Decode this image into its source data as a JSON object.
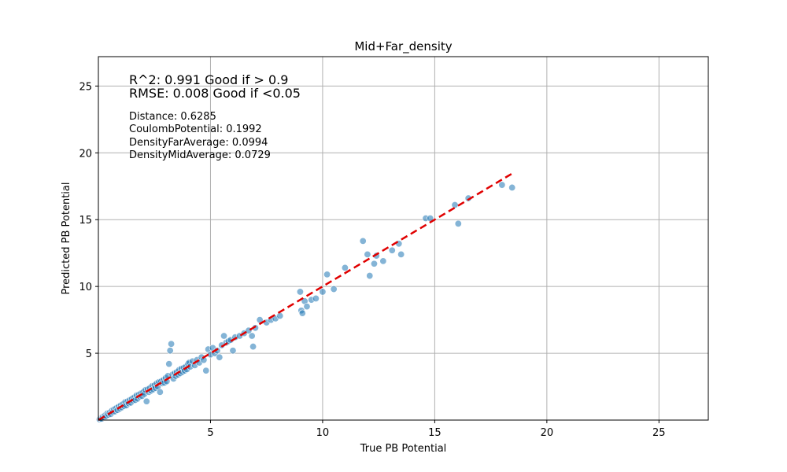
{
  "chart_data": {
    "type": "scatter",
    "title": "Mid+Far_density",
    "xlabel": "True PB Potential",
    "ylabel": "Predicted PB Potential",
    "xlim": [
      0,
      27.2
    ],
    "ylim": [
      0,
      27.2
    ],
    "xticks": [
      5,
      10,
      15,
      20,
      25
    ],
    "yticks": [
      5,
      10,
      15,
      20,
      25
    ],
    "grid": true,
    "colors": {
      "points": "#1f77b4",
      "points_edge": "#ffffff",
      "ideal_line": "#e00000",
      "grid": "#b0b0b0"
    },
    "ideal_line": {
      "style": "dashed",
      "x": [
        0,
        18.45
      ],
      "y": [
        0,
        18.45
      ]
    },
    "annotations": {
      "metrics": [
        "R^2: 0.991 Good if > 0.9",
        "RMSE: 0.008 Good if <0.05"
      ],
      "feature_importance": [
        "Distance: 0.6285",
        "CoulombPotential: 0.1992",
        "DensityFarAverage: 0.0994",
        "DensityMidAverage: 0.0729"
      ]
    },
    "series": [
      {
        "points": [
          [
            0.05,
            0.05
          ],
          [
            0.1,
            0.12
          ],
          [
            0.15,
            0.1
          ],
          [
            0.2,
            0.25
          ],
          [
            0.25,
            0.2
          ],
          [
            0.3,
            0.35
          ],
          [
            0.35,
            0.3
          ],
          [
            0.4,
            0.5
          ],
          [
            0.45,
            0.4
          ],
          [
            0.5,
            0.55
          ],
          [
            0.55,
            0.45
          ],
          [
            0.6,
            0.7
          ],
          [
            0.65,
            0.6
          ],
          [
            0.7,
            0.8
          ],
          [
            0.75,
            0.65
          ],
          [
            0.8,
            0.9
          ],
          [
            0.85,
            0.75
          ],
          [
            0.9,
            1.0
          ],
          [
            0.95,
            0.85
          ],
          [
            1.0,
            1.1
          ],
          [
            1.05,
            0.95
          ],
          [
            1.1,
            1.2
          ],
          [
            1.15,
            1.05
          ],
          [
            1.2,
            1.35
          ],
          [
            1.25,
            1.1
          ],
          [
            1.3,
            1.4
          ],
          [
            1.35,
            1.25
          ],
          [
            1.4,
            1.5
          ],
          [
            1.45,
            1.3
          ],
          [
            1.5,
            1.6
          ],
          [
            1.55,
            1.45
          ],
          [
            1.6,
            1.7
          ],
          [
            1.65,
            1.5
          ],
          [
            1.7,
            1.85
          ],
          [
            1.75,
            1.6
          ],
          [
            1.8,
            1.9
          ],
          [
            1.85,
            1.75
          ],
          [
            1.9,
            2.0
          ],
          [
            1.95,
            1.8
          ],
          [
            2.0,
            2.1
          ],
          [
            2.05,
            1.95
          ],
          [
            2.1,
            2.25
          ],
          [
            2.15,
            1.4
          ],
          [
            2.2,
            2.3
          ],
          [
            2.25,
            2.1
          ],
          [
            2.3,
            2.4
          ],
          [
            2.35,
            2.2
          ],
          [
            2.4,
            2.55
          ],
          [
            2.45,
            2.3
          ],
          [
            2.5,
            2.6
          ],
          [
            2.55,
            2.4
          ],
          [
            2.6,
            2.75
          ],
          [
            2.65,
            2.5
          ],
          [
            2.7,
            2.85
          ],
          [
            2.75,
            2.1
          ],
          [
            2.8,
            2.9
          ],
          [
            2.85,
            2.75
          ],
          [
            2.9,
            3.0
          ],
          [
            2.95,
            2.8
          ],
          [
            3.0,
            3.15
          ],
          [
            3.05,
            2.9
          ],
          [
            3.1,
            3.3
          ],
          [
            3.15,
            4.2
          ],
          [
            3.2,
            5.2
          ],
          [
            3.25,
            5.7
          ],
          [
            3.3,
            3.4
          ],
          [
            3.35,
            3.1
          ],
          [
            3.4,
            3.5
          ],
          [
            3.45,
            3.3
          ],
          [
            3.5,
            3.6
          ],
          [
            3.55,
            3.4
          ],
          [
            3.6,
            3.75
          ],
          [
            3.65,
            3.5
          ],
          [
            3.7,
            3.85
          ],
          [
            3.75,
            3.6
          ],
          [
            3.8,
            3.9
          ],
          [
            3.85,
            3.7
          ],
          [
            3.9,
            4.0
          ],
          [
            3.95,
            3.8
          ],
          [
            4.0,
            4.2
          ],
          [
            4.05,
            4.3
          ],
          [
            4.1,
            4.0
          ],
          [
            4.2,
            4.4
          ],
          [
            4.3,
            4.1
          ],
          [
            4.4,
            4.5
          ],
          [
            4.5,
            4.3
          ],
          [
            4.6,
            4.7
          ],
          [
            4.7,
            4.5
          ],
          [
            4.8,
            3.7
          ],
          [
            4.9,
            5.3
          ],
          [
            5.0,
            4.9
          ],
          [
            5.1,
            5.4
          ],
          [
            5.2,
            5.0
          ],
          [
            5.3,
            5.2
          ],
          [
            5.4,
            4.7
          ],
          [
            5.5,
            5.6
          ],
          [
            5.6,
            6.3
          ],
          [
            5.7,
            5.8
          ],
          [
            5.8,
            5.9
          ],
          [
            5.9,
            6.0
          ],
          [
            6.0,
            5.2
          ],
          [
            6.1,
            6.2
          ],
          [
            6.3,
            6.3
          ],
          [
            6.5,
            6.5
          ],
          [
            6.7,
            6.7
          ],
          [
            6.85,
            6.3
          ],
          [
            6.9,
            5.5
          ],
          [
            7.0,
            6.9
          ],
          [
            7.2,
            7.5
          ],
          [
            7.5,
            7.3
          ],
          [
            7.7,
            7.5
          ],
          [
            7.9,
            7.6
          ],
          [
            8.1,
            7.8
          ],
          [
            9.0,
            9.6
          ],
          [
            9.05,
            8.2
          ],
          [
            9.1,
            8.0
          ],
          [
            9.2,
            8.9
          ],
          [
            9.3,
            8.5
          ],
          [
            9.5,
            9.0
          ],
          [
            9.7,
            9.1
          ],
          [
            10.0,
            9.6
          ],
          [
            10.2,
            10.9
          ],
          [
            10.5,
            9.8
          ],
          [
            11.0,
            11.4
          ],
          [
            11.8,
            13.4
          ],
          [
            12.0,
            12.4
          ],
          [
            12.1,
            10.8
          ],
          [
            12.3,
            11.7
          ],
          [
            12.4,
            12.3
          ],
          [
            12.7,
            11.9
          ],
          [
            13.1,
            12.7
          ],
          [
            13.4,
            13.2
          ],
          [
            13.5,
            12.4
          ],
          [
            14.6,
            15.1
          ],
          [
            14.8,
            15.1
          ],
          [
            15.9,
            16.1
          ],
          [
            16.05,
            14.7
          ],
          [
            16.5,
            16.6
          ],
          [
            18.0,
            17.6
          ],
          [
            18.45,
            17.4
          ]
        ]
      }
    ]
  }
}
